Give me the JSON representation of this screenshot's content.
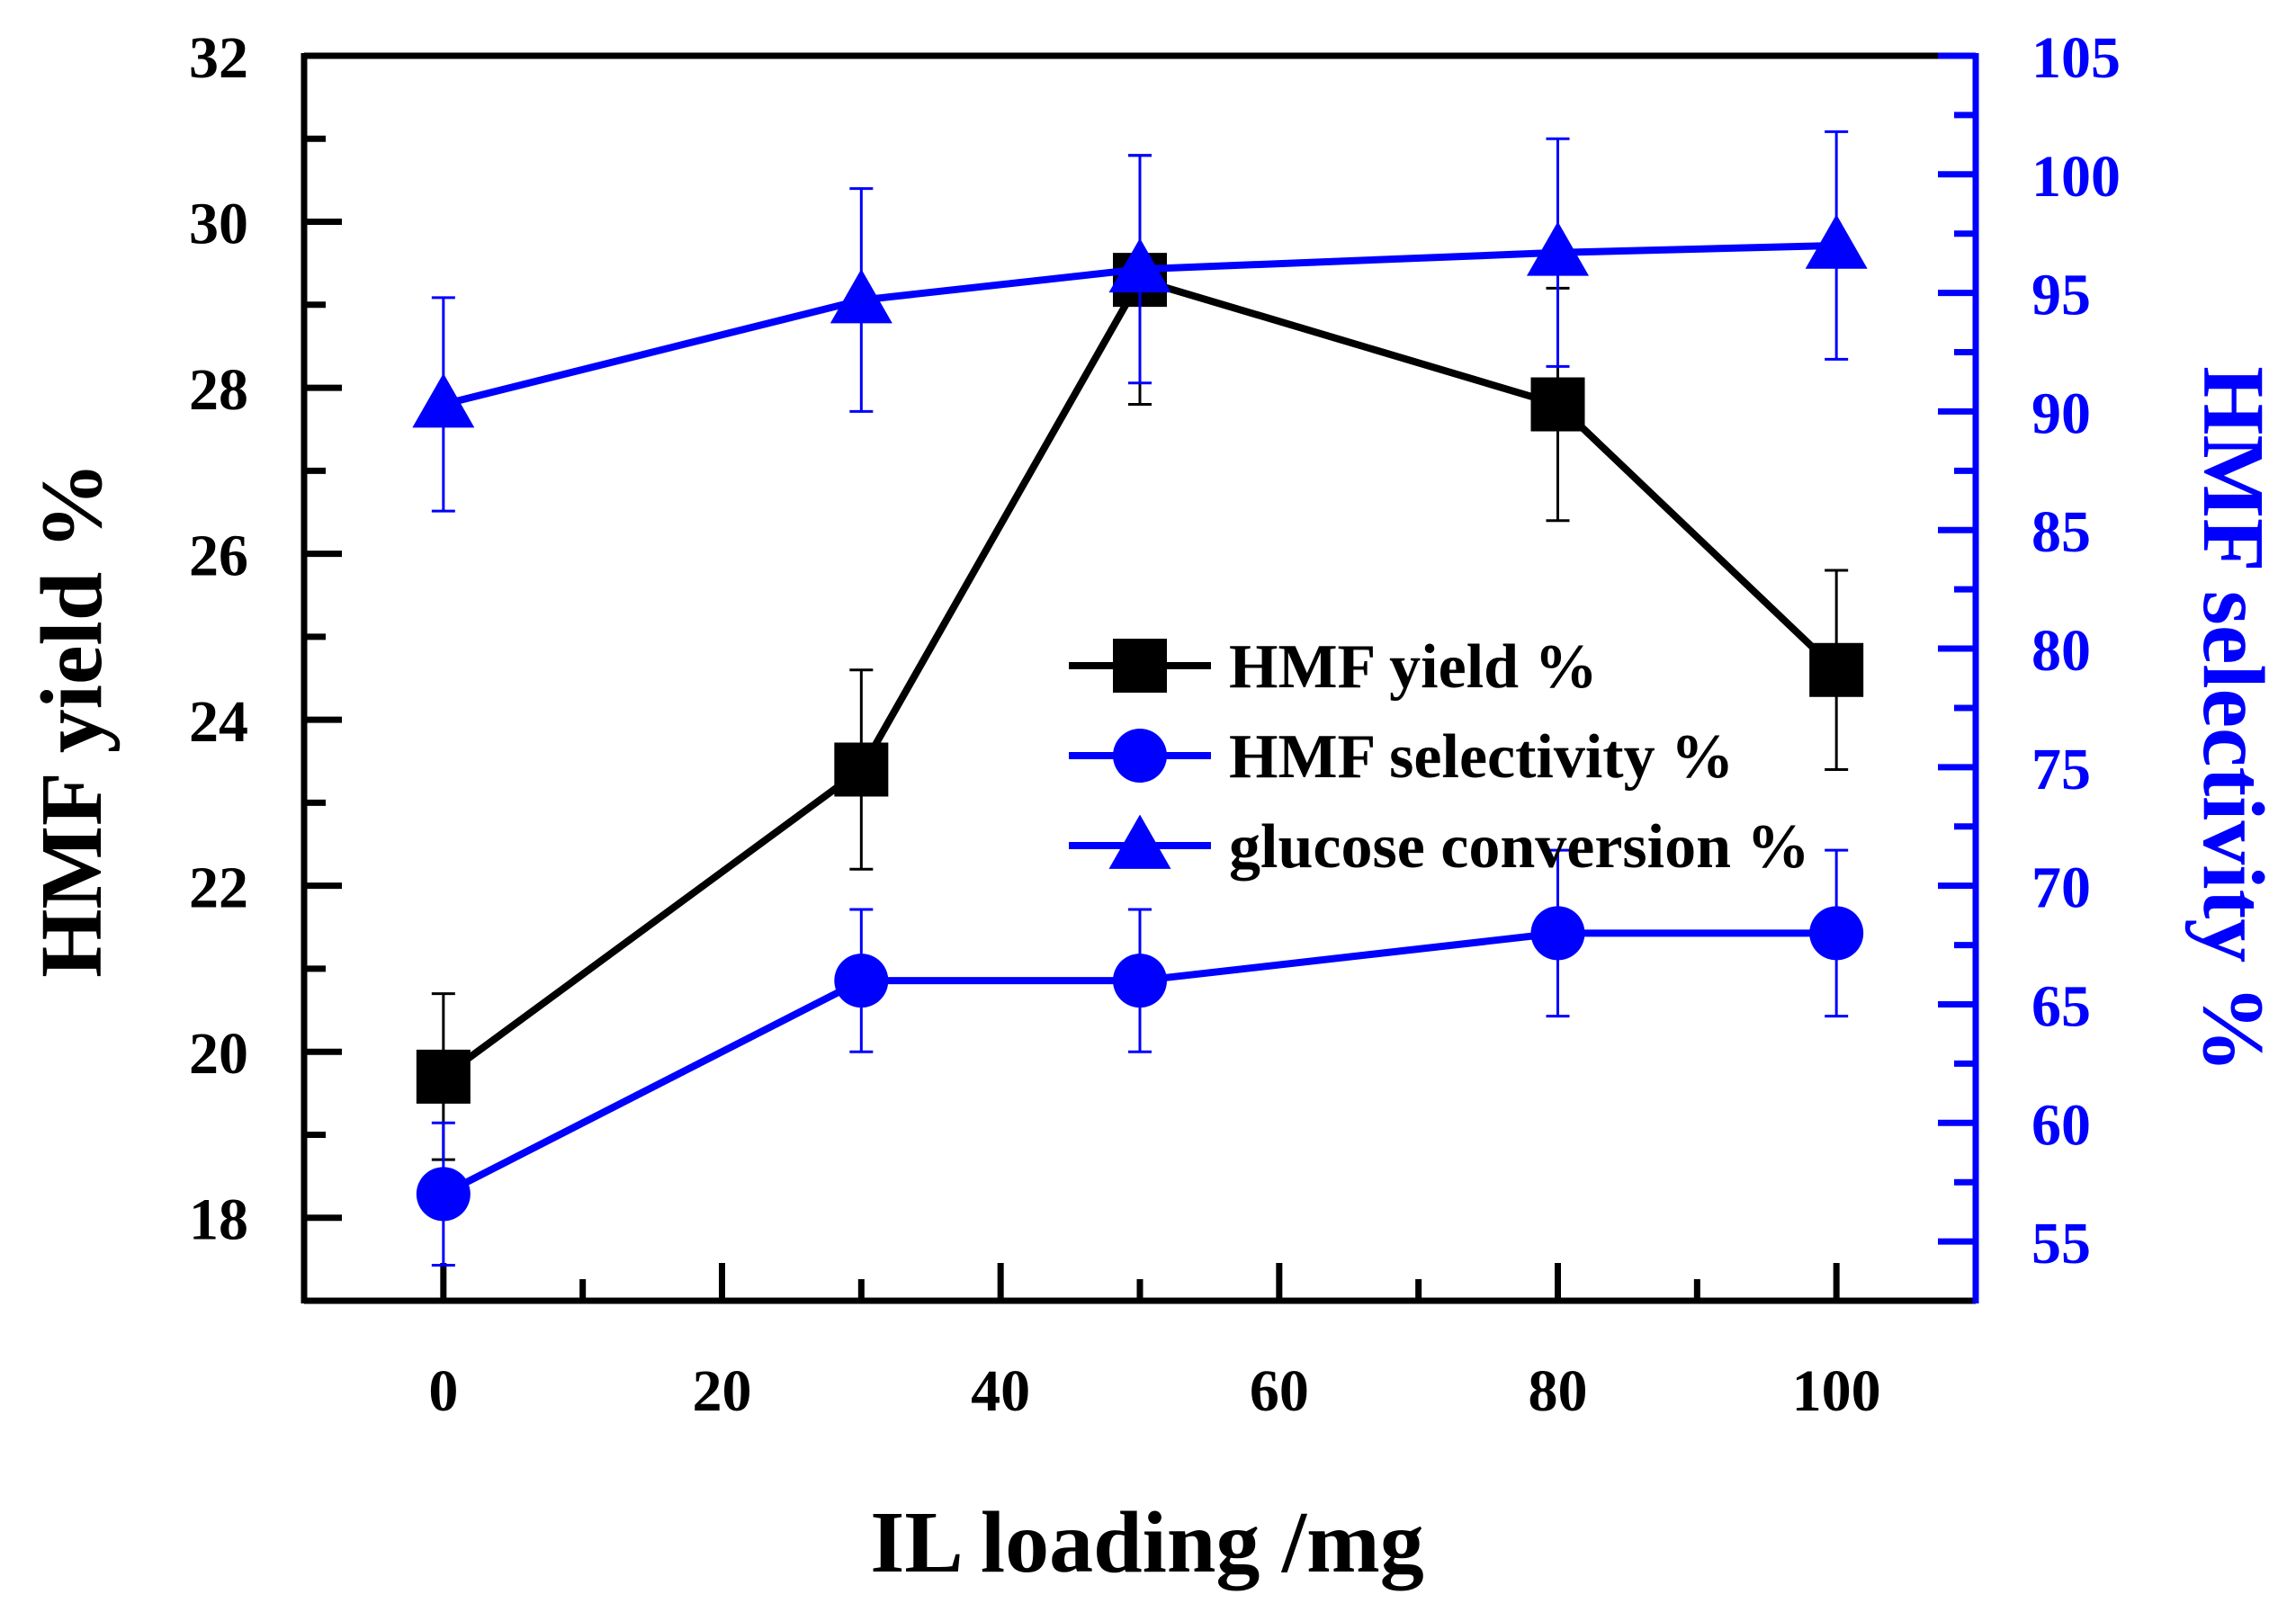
{
  "chart_data": {
    "type": "line",
    "xlabel": "IL loading /mg",
    "ylabel_left": "HMF yield %",
    "ylabel_right": "HMF selectivity %",
    "xlim": [
      -10,
      110
    ],
    "ylim_left": [
      17,
      32
    ],
    "ylim_right": [
      52.5,
      105
    ],
    "x_ticks": [
      "0",
      "20",
      "40",
      "60",
      "80",
      "100"
    ],
    "x_tick_values": [
      0,
      20,
      40,
      60,
      80,
      100
    ],
    "y_left_ticks": [
      "18",
      "20",
      "22",
      "24",
      "26",
      "28",
      "30",
      "32"
    ],
    "y_left_tick_values": [
      18,
      20,
      22,
      24,
      26,
      28,
      30,
      32
    ],
    "y_right_ticks": [
      "55",
      "60",
      "65",
      "70",
      "75",
      "80",
      "85",
      "90",
      "95",
      "100",
      "105"
    ],
    "y_right_tick_values": [
      55,
      60,
      65,
      70,
      75,
      80,
      85,
      90,
      95,
      100,
      105
    ],
    "grid": false,
    "legend_position": "center-right",
    "colors": {
      "yield": "#000000",
      "selectivity": "#0000ff",
      "conversion": "#0000ff",
      "right_axis": "#0000ff"
    },
    "series": [
      {
        "name": "HMF yield %",
        "axis": "left",
        "marker": "square",
        "x": [
          0,
          30,
          50,
          80,
          100
        ],
        "y": [
          19.7,
          23.4,
          29.3,
          27.8,
          24.6
        ],
        "error": [
          1.0,
          1.2,
          1.5,
          1.4,
          1.2
        ]
      },
      {
        "name": "HMF selectivity %",
        "axis": "right",
        "marker": "circle",
        "x": [
          0,
          30,
          50,
          80,
          100
        ],
        "y": [
          57,
          66,
          66,
          68,
          68
        ],
        "error": [
          3,
          3,
          3,
          3.5,
          3.5
        ]
      },
      {
        "name": "glucose conversion %",
        "axis": "right",
        "marker": "triangle",
        "x": [
          0,
          30,
          50,
          80,
          100
        ],
        "y": [
          90.3,
          94.7,
          96,
          96.7,
          97
        ],
        "error": [
          4.5,
          4.7,
          4.8,
          4.8,
          4.8
        ]
      }
    ]
  }
}
